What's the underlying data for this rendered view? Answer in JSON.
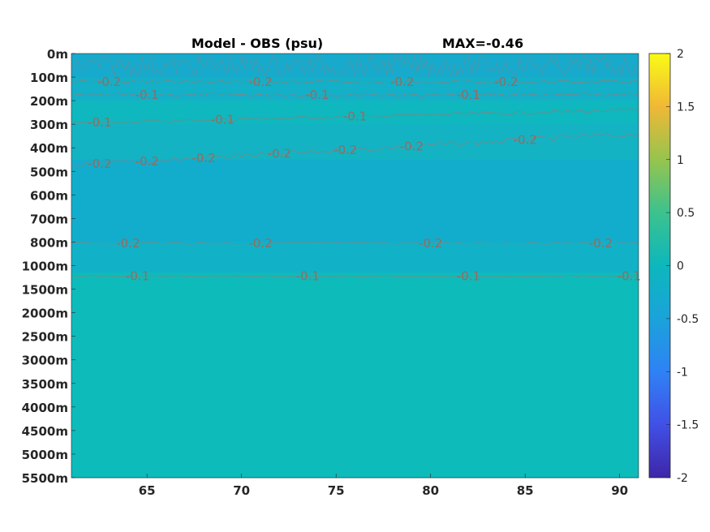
{
  "chart_data": {
    "type": "heatmap",
    "title": "Model - OBS (psu)",
    "subtitle": "MAX=-0.46",
    "xlabel": "",
    "ylabel": "",
    "xlim": [
      61,
      91
    ],
    "x_ticks": [
      65,
      70,
      75,
      80,
      85,
      90
    ],
    "y_tick_labels": [
      "0m",
      "100m",
      "200m",
      "300m",
      "400m",
      "500m",
      "600m",
      "700m",
      "800m",
      "1000m",
      "1500m",
      "2000m",
      "2500m",
      "3000m",
      "3500m",
      "4000m",
      "4500m",
      "5000m",
      "5500m"
    ],
    "colorbar": {
      "min": -2,
      "max": 2,
      "ticks": [
        "2",
        "1.5",
        "1",
        "0.5",
        "0",
        "-0.5",
        "-1",
        "-1.5",
        "-2"
      ],
      "colormap": "parula"
    },
    "field_colors": {
      "band_0_100m": "#17aacc",
      "band_100_200m": "#13b0c8",
      "band_200_300m": "#0fb7be",
      "band_300_450m": "#13b3c4",
      "band_450_800m": "#12adcc",
      "band_800_1100m": "#11b2c8",
      "band_1100_5500m": "#0dbbbb"
    },
    "contours": [
      {
        "level": -0.2,
        "depth_level": 1.2,
        "labels": [
          {
            "x": 63,
            "text": "-0.2"
          },
          {
            "x": 71,
            "text": "-0.2"
          },
          {
            "x": 78.5,
            "text": "-0.2"
          },
          {
            "x": 84,
            "text": "-0.2"
          }
        ]
      },
      {
        "level": -0.1,
        "depth_level": 1.75,
        "labels": [
          {
            "x": 65,
            "text": "-0.1"
          },
          {
            "x": 74,
            "text": "-0.1"
          },
          {
            "x": 82,
            "text": "-0.1"
          }
        ]
      },
      {
        "level": -0.1,
        "depth_level": 2.95,
        "labels": [
          {
            "x": 62.5,
            "text": "-0.1"
          },
          {
            "x": 69,
            "text": "-0.1"
          },
          {
            "x": 76,
            "text": "-0.1"
          }
        ]
      },
      {
        "level": -0.2,
        "depth_level": 4.2,
        "labels": [
          {
            "x": 62.5,
            "text": "-0.2"
          },
          {
            "x": 65,
            "text": "-0.2"
          },
          {
            "x": 68,
            "text": "-0.2"
          },
          {
            "x": 72,
            "text": "-0.2"
          },
          {
            "x": 75.5,
            "text": "-0.2"
          },
          {
            "x": 79,
            "text": "-0.2"
          },
          {
            "x": 85,
            "text": "-0.2"
          }
        ]
      },
      {
        "level": -0.2,
        "depth_level": 8.05,
        "labels": [
          {
            "x": 64,
            "text": "-0.2"
          },
          {
            "x": 71,
            "text": "-0.2"
          },
          {
            "x": 80,
            "text": "-0.2"
          },
          {
            "x": 89,
            "text": "-0.2"
          }
        ]
      },
      {
        "level": -0.1,
        "depth_level": 9.45,
        "labels": [
          {
            "x": 64.5,
            "text": "-0.1"
          },
          {
            "x": 73.5,
            "text": "-0.1"
          },
          {
            "x": 82,
            "text": "-0.1"
          },
          {
            "x": 90.5,
            "text": "-0.1"
          }
        ]
      }
    ]
  }
}
